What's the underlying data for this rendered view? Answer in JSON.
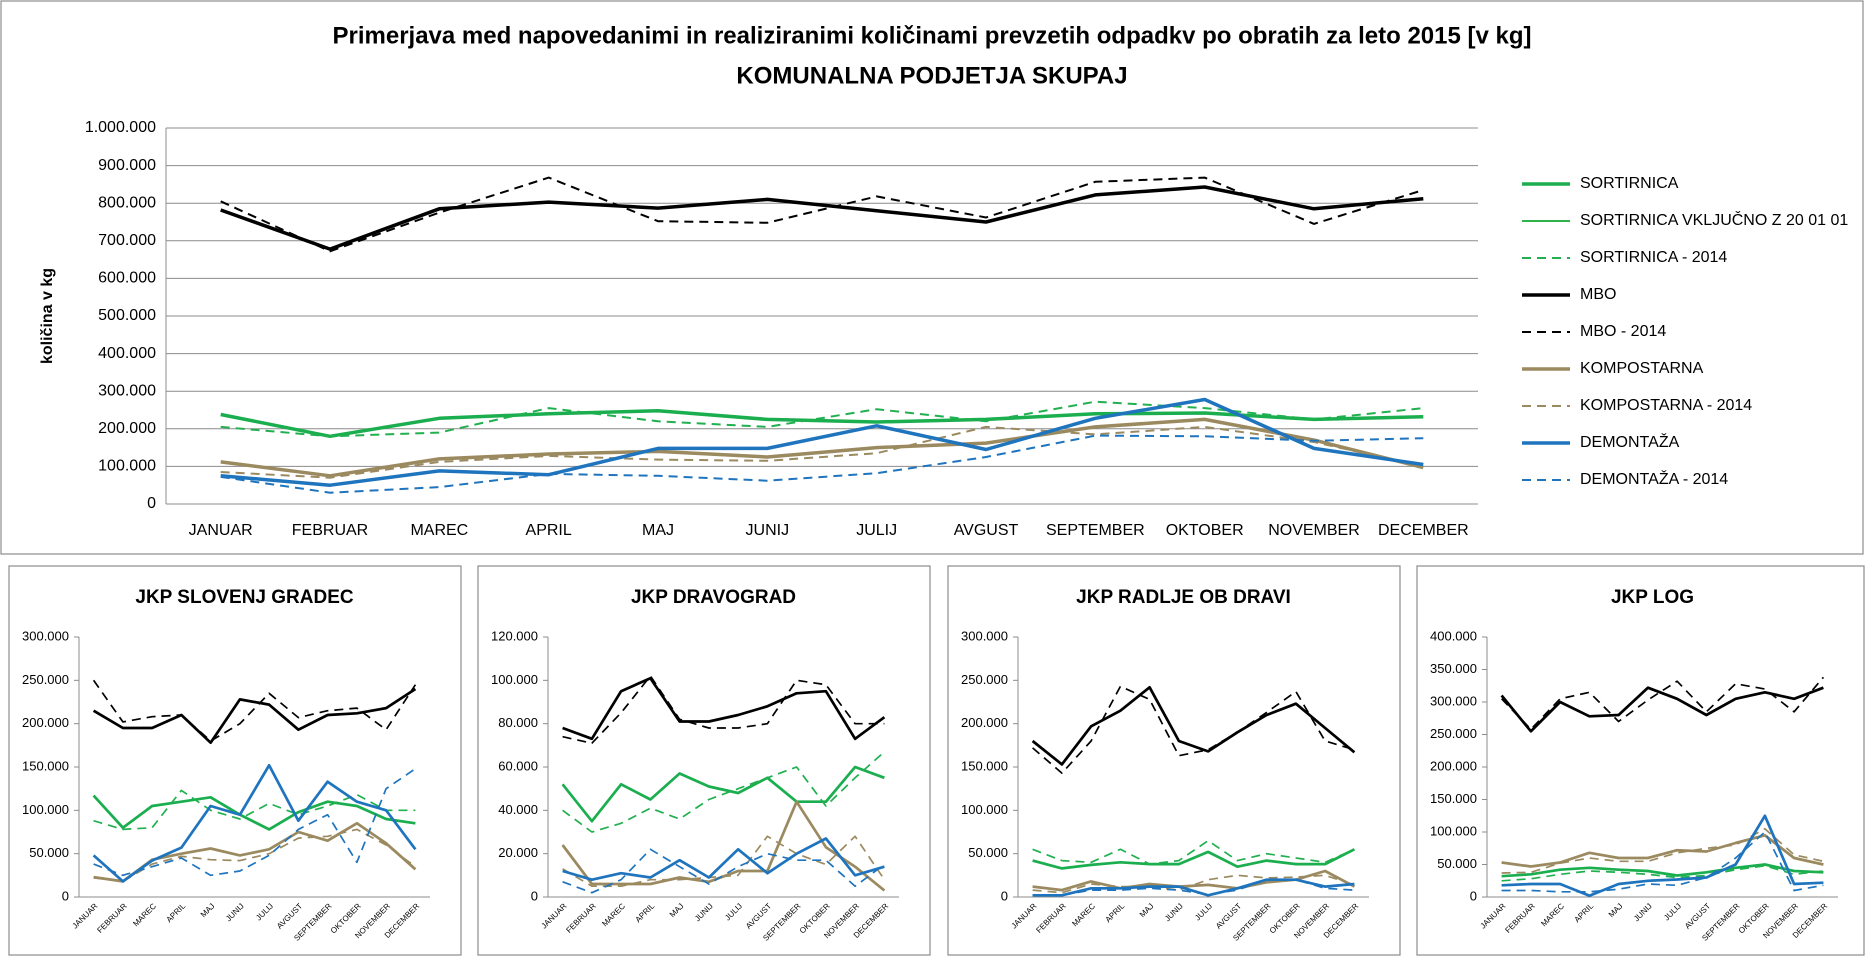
{
  "chart_data": [
    {
      "type": "line",
      "title": "Primerjava  med napovedanimi  in realiziranimi  količinami  prevzetih odpadkv  po obratih za leto 2015 [v kg]",
      "subtitle": "KOMUNALNA  PODJETJA SKUPAJ",
      "y_label": "količina  v kg",
      "categories": [
        "JANUAR",
        "FEBRUAR",
        "MAREC",
        "APRIL",
        "MAJ",
        "JUNIJ",
        "JULIJ",
        "AVGUST",
        "SEPTEMBER",
        "OKTOBER",
        "NOVEMBER",
        "DECEMBER"
      ],
      "ylim": [
        0,
        1000000
      ],
      "yticks": [
        0,
        {
          "value": 100000,
          "label": "100.000"
        },
        {
          "value": 200000,
          "label": "200.000"
        },
        {
          "value": 300000,
          "label": "300.000"
        },
        {
          "value": 400000,
          "label": "400.000"
        },
        {
          "value": 500000,
          "label": "500.000"
        },
        {
          "value": 600000,
          "label": "600.000"
        },
        {
          "value": 700000,
          "label": "700.000"
        },
        {
          "value": 800000,
          "label": "800.000"
        },
        {
          "value": 900000,
          "label": "900.000"
        },
        {
          "value": 1000000,
          "label": "1.000.000"
        }
      ],
      "grid": true,
      "legend": "right",
      "series": [
        {
          "name": "SORTIRNICA",
          "color": "#1aae4e",
          "dash": false,
          "width": 3.5,
          "values": [
            238000,
            180000,
            228000,
            240000,
            248000,
            225000,
            218000,
            225000,
            240000,
            242000,
            225000,
            232000
          ]
        },
        {
          "name": "SORTIRNICA VKLJUČNO Z 20 01 01",
          "color": "#2db34a",
          "dash": false,
          "width": 2,
          "values": [
            null,
            null,
            null,
            null,
            null,
            null,
            null,
            null,
            null,
            null,
            null,
            null
          ]
        },
        {
          "name": "SORTIRNICA - 2014",
          "color": "#21b04f",
          "dash": true,
          "width": 2,
          "values": [
            205000,
            180000,
            190000,
            255000,
            220000,
            205000,
            252000,
            220000,
            272000,
            255000,
            225000,
            255000
          ]
        },
        {
          "name": "MBO",
          "color": "#000000",
          "dash": false,
          "width": 3.5,
          "values": [
            782000,
            678000,
            785000,
            803000,
            787000,
            810000,
            780000,
            750000,
            822000,
            843000,
            785000,
            812000
          ]
        },
        {
          "name": "MBO - 2014",
          "color": "#000000",
          "dash": true,
          "width": 2,
          "values": [
            805000,
            672000,
            775000,
            868000,
            752000,
            748000,
            818000,
            762000,
            857000,
            868000,
            745000,
            835000
          ]
        },
        {
          "name": "KOMPOSTARNA",
          "color": "#9b8a5f",
          "dash": false,
          "width": 3.5,
          "values": [
            112000,
            75000,
            120000,
            133000,
            140000,
            125000,
            150000,
            162000,
            205000,
            225000,
            170000,
            97000
          ]
        },
        {
          "name": "KOMPOSTARNA - 2014",
          "color": "#9b8a5f",
          "dash": true,
          "width": 2,
          "values": [
            85000,
            70000,
            112000,
            128000,
            118000,
            115000,
            135000,
            205000,
            185000,
            205000,
            165000,
            100000
          ]
        },
        {
          "name": "DEMONTAŽA",
          "color": "#1f74be",
          "dash": false,
          "width": 3.5,
          "values": [
            75000,
            50000,
            88000,
            78000,
            148000,
            148000,
            208000,
            145000,
            228000,
            278000,
            148000,
            105000
          ]
        },
        {
          "name": "DEMONTAŽA - 2014",
          "color": "#1f74be",
          "dash": true,
          "width": 2,
          "values": [
            72000,
            30000,
            45000,
            80000,
            75000,
            62000,
            82000,
            125000,
            182000,
            180000,
            168000,
            175000
          ]
        }
      ]
    },
    {
      "type": "line",
      "title": "JKP SLOVENJ GRADEC",
      "categories": [
        "JANUAR",
        "FEBRUAR",
        "MAREC",
        "APRIL",
        "MAJ",
        "JUNIJ",
        "JULIJ",
        "AVGUST",
        "SEPTEMBER",
        "OKTOBER",
        "NOVEMBER",
        "DECEMBER"
      ],
      "ylim": [
        0,
        300000
      ],
      "yticks": [
        0,
        {
          "value": 50000,
          "label": "50.000"
        },
        {
          "value": 100000,
          "label": "100.000"
        },
        {
          "value": 150000,
          "label": "150.000"
        },
        {
          "value": 200000,
          "label": "200.000"
        },
        {
          "value": 250000,
          "label": "250.000"
        },
        {
          "value": 300000,
          "label": "300.000"
        }
      ],
      "grid": false,
      "series": [
        {
          "color": "#1aae4e",
          "dash": false,
          "values": [
            117000,
            80000,
            105000,
            110000,
            115000,
            95000,
            78000,
            98000,
            110000,
            105000,
            90000,
            85000
          ]
        },
        {
          "color": "#21b04f",
          "dash": true,
          "values": [
            88000,
            78000,
            80000,
            123000,
            100000,
            90000,
            108000,
            95000,
            105000,
            118000,
            100000,
            100000
          ]
        },
        {
          "color": "#000000",
          "dash": false,
          "values": [
            215000,
            195000,
            195000,
            210000,
            178000,
            228000,
            222000,
            193000,
            210000,
            212000,
            218000,
            240000
          ]
        },
        {
          "color": "#000000",
          "dash": true,
          "values": [
            250000,
            202000,
            208000,
            210000,
            180000,
            200000,
            235000,
            207000,
            215000,
            218000,
            193000,
            245000
          ]
        },
        {
          "color": "#9b8a5f",
          "dash": false,
          "values": [
            23000,
            18000,
            43000,
            50000,
            56000,
            48000,
            55000,
            75000,
            65000,
            85000,
            62000,
            32000
          ]
        },
        {
          "color": "#9b8a5f",
          "dash": true,
          "values": [
            22000,
            18000,
            38000,
            47000,
            43000,
            42000,
            50000,
            68000,
            70000,
            78000,
            60000,
            35000
          ]
        },
        {
          "color": "#1f74be",
          "dash": false,
          "values": [
            48000,
            18000,
            42000,
            57000,
            105000,
            95000,
            152000,
            88000,
            133000,
            110000,
            100000,
            55000
          ]
        },
        {
          "color": "#1f74be",
          "dash": true,
          "values": [
            38000,
            25000,
            35000,
            45000,
            25000,
            30000,
            48000,
            78000,
            95000,
            40000,
            125000,
            148000
          ]
        }
      ]
    },
    {
      "type": "line",
      "title": "JKP DRAVOGRAD",
      "categories": [
        "JANUAR",
        "FEBRUAR",
        "MAREC",
        "APRIL",
        "MAJ",
        "JUNIJ",
        "JULIJ",
        "AVGUST",
        "SEPTEMBER",
        "OKTOBER",
        "NOVEMBER",
        "DECEMBER"
      ],
      "ylim": [
        0,
        120000
      ],
      "yticks": [
        0,
        {
          "value": 20000,
          "label": "20.000"
        },
        {
          "value": 40000,
          "label": "40.000"
        },
        {
          "value": 60000,
          "label": "60.000"
        },
        {
          "value": 80000,
          "label": "80.000"
        },
        {
          "value": 100000,
          "label": "100.000"
        },
        {
          "value": 120000,
          "label": "120.000"
        }
      ],
      "grid": false,
      "series": [
        {
          "color": "#1aae4e",
          "dash": false,
          "values": [
            52000,
            35000,
            52000,
            45000,
            57000,
            51000,
            48000,
            55000,
            44000,
            44000,
            60000,
            55000
          ]
        },
        {
          "color": "#21b04f",
          "dash": true,
          "values": [
            40000,
            30000,
            34000,
            41000,
            36000,
            45000,
            50000,
            55000,
            60000,
            42000,
            55000,
            67000
          ]
        },
        {
          "color": "#000000",
          "dash": false,
          "values": [
            78000,
            73000,
            95000,
            101000,
            81000,
            81000,
            84000,
            88000,
            94000,
            95000,
            73000,
            83000
          ]
        },
        {
          "color": "#000000",
          "dash": true,
          "values": [
            74000,
            71000,
            85000,
            102000,
            82000,
            78000,
            78000,
            80000,
            100000,
            98000,
            80000,
            80000
          ]
        },
        {
          "color": "#9b8a5f",
          "dash": false,
          "values": [
            24000,
            6000,
            6000,
            6000,
            9000,
            7000,
            12000,
            12000,
            44000,
            23000,
            14000,
            3000
          ]
        },
        {
          "color": "#9b8a5f",
          "dash": true,
          "values": [
            13000,
            5000,
            5000,
            8000,
            8000,
            9000,
            10000,
            28000,
            20000,
            15000,
            28000,
            8000
          ]
        },
        {
          "color": "#1f74be",
          "dash": false,
          "values": [
            12000,
            8000,
            11000,
            9000,
            17000,
            9000,
            22000,
            11000,
            20000,
            27000,
            10000,
            14000
          ]
        },
        {
          "color": "#1f74be",
          "dash": true,
          "values": [
            7000,
            2000,
            8000,
            22000,
            14000,
            6000,
            14000,
            20000,
            17000,
            17000,
            5000,
            15000
          ]
        }
      ]
    },
    {
      "type": "line",
      "title": "JKP RADLJE OB DRAVI",
      "categories": [
        "JANUAR",
        "FEBRUAR",
        "MAREC",
        "APRIL",
        "MAJ",
        "JUNIJ",
        "JULIJ",
        "AVGUST",
        "SEPTEMBER",
        "OKTOBER",
        "NOVEMBER",
        "DECEMBER"
      ],
      "ylim": [
        0,
        300000
      ],
      "yticks": [
        0,
        {
          "value": 50000,
          "label": "50.000"
        },
        {
          "value": 100000,
          "label": "100.000"
        },
        {
          "value": 150000,
          "label": "150.000"
        },
        {
          "value": 200000,
          "label": "200.000"
        },
        {
          "value": 250000,
          "label": "250.000"
        },
        {
          "value": 300000,
          "label": "300.000"
        }
      ],
      "grid": false,
      "series": [
        {
          "color": "#1aae4e",
          "dash": false,
          "values": [
            42000,
            33000,
            37000,
            40000,
            38000,
            38000,
            52000,
            35000,
            42000,
            38000,
            38000,
            55000
          ]
        },
        {
          "color": "#21b04f",
          "dash": true,
          "values": [
            55000,
            42000,
            40000,
            55000,
            38000,
            42000,
            65000,
            42000,
            50000,
            45000,
            40000,
            55000
          ]
        },
        {
          "color": "#000000",
          "dash": false,
          "values": [
            180000,
            153000,
            197000,
            215000,
            242000,
            180000,
            168000,
            190000,
            210000,
            223000,
            195000,
            167000
          ]
        },
        {
          "color": "#000000",
          "dash": true,
          "values": [
            172000,
            143000,
            180000,
            243000,
            228000,
            163000,
            170000,
            190000,
            213000,
            237000,
            180000,
            170000
          ]
        },
        {
          "color": "#9b8a5f",
          "dash": false,
          "values": [
            12000,
            8000,
            18000,
            10000,
            15000,
            12000,
            14000,
            10000,
            17000,
            20000,
            30000,
            12000
          ]
        },
        {
          "color": "#9b8a5f",
          "dash": true,
          "values": [
            8000,
            5000,
            15000,
            12000,
            12000,
            8000,
            20000,
            25000,
            22000,
            23000,
            25000,
            14000
          ]
        },
        {
          "color": "#1f74be",
          "dash": false,
          "values": [
            2000,
            2000,
            10000,
            10000,
            12000,
            12000,
            2000,
            10000,
            20000,
            20000,
            12000,
            15000
          ]
        },
        {
          "color": "#1f74be",
          "dash": true,
          "values": [
            2000,
            2000,
            8000,
            8000,
            10000,
            8000,
            3000,
            8000,
            20000,
            20000,
            10000,
            8000
          ]
        }
      ]
    },
    {
      "type": "line",
      "title": "JKP LOG",
      "categories": [
        "JANUAR",
        "FEBRUAR",
        "MAREC",
        "APRIL",
        "MAJ",
        "JUNIJ",
        "JULIJ",
        "AVGUST",
        "SEPTEMBER",
        "OKTOBER",
        "NOVEMBER",
        "DECEMBER"
      ],
      "ylim": [
        0,
        400000
      ],
      "yticks": [
        0,
        {
          "value": 50000,
          "label": "50.000"
        },
        {
          "value": 100000,
          "label": "100.000"
        },
        {
          "value": 150000,
          "label": "150.000"
        },
        {
          "value": 200000,
          "label": "200.000"
        },
        {
          "value": 250000,
          "label": "250.000"
        },
        {
          "value": 300000,
          "label": "300.000"
        },
        {
          "value": 350000,
          "label": "350.000"
        },
        {
          "value": 400000,
          "label": "400.000"
        }
      ],
      "grid": false,
      "series": [
        {
          "color": "#1aae4e",
          "dash": false,
          "values": [
            32000,
            35000,
            42000,
            45000,
            42000,
            40000,
            33000,
            38000,
            45000,
            50000,
            40000,
            38000
          ]
        },
        {
          "color": "#21b04f",
          "dash": true,
          "values": [
            25000,
            28000,
            35000,
            40000,
            38000,
            35000,
            30000,
            33000,
            42000,
            48000,
            35000,
            40000
          ]
        },
        {
          "color": "#000000",
          "dash": false,
          "values": [
            310000,
            255000,
            300000,
            278000,
            280000,
            322000,
            305000,
            280000,
            305000,
            315000,
            305000,
            322000
          ]
        },
        {
          "color": "#000000",
          "dash": true,
          "values": [
            305000,
            258000,
            305000,
            315000,
            270000,
            303000,
            332000,
            285000,
            328000,
            320000,
            285000,
            338000
          ]
        },
        {
          "color": "#9b8a5f",
          "dash": false,
          "values": [
            53000,
            47000,
            53000,
            68000,
            60000,
            60000,
            72000,
            70000,
            83000,
            95000,
            60000,
            50000
          ]
        },
        {
          "color": "#9b8a5f",
          "dash": true,
          "values": [
            37000,
            38000,
            52000,
            60000,
            55000,
            55000,
            68000,
            75000,
            80000,
            105000,
            65000,
            55000
          ]
        },
        {
          "color": "#1f74be",
          "dash": false,
          "values": [
            18000,
            20000,
            20000,
            2000,
            20000,
            25000,
            27000,
            30000,
            50000,
            125000,
            20000,
            22000
          ]
        },
        {
          "color": "#1f74be",
          "dash": true,
          "values": [
            10000,
            10000,
            8000,
            8000,
            12000,
            20000,
            18000,
            30000,
            60000,
            100000,
            10000,
            18000
          ]
        }
      ]
    }
  ]
}
